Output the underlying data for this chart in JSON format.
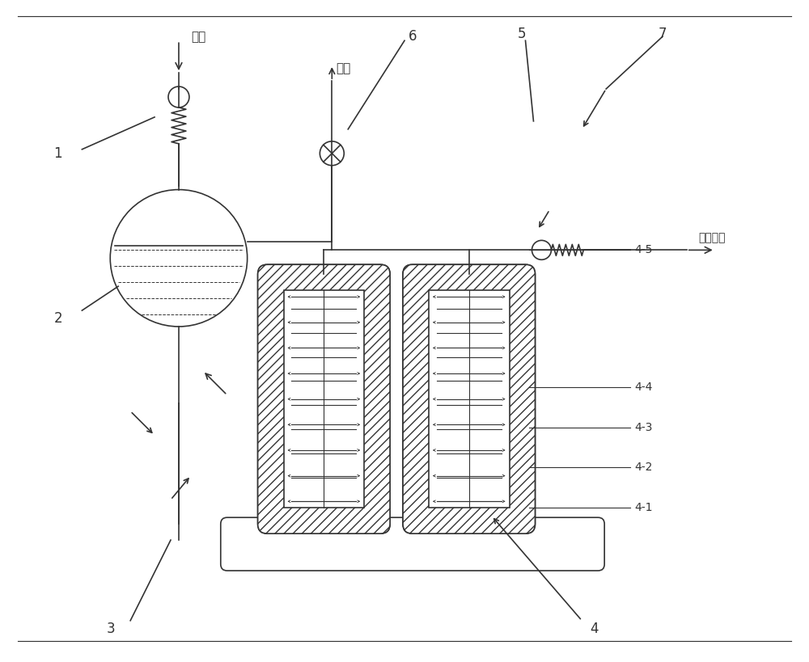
{
  "bg_color": "#ffffff",
  "line_color": "#333333",
  "hatch_color": "#555555",
  "title_text": "",
  "labels": {
    "liquid_n2": "液氮",
    "exhaust": "排气",
    "high_pressure": "高压氮气",
    "comp1": "1",
    "comp2": "2",
    "comp3": "3",
    "comp4": "4",
    "comp41": "4-1",
    "comp42": "4-2",
    "comp43": "4-3",
    "comp44": "4-4",
    "comp45": "4-5",
    "comp5": "5",
    "comp6": "6",
    "comp7": "7"
  }
}
